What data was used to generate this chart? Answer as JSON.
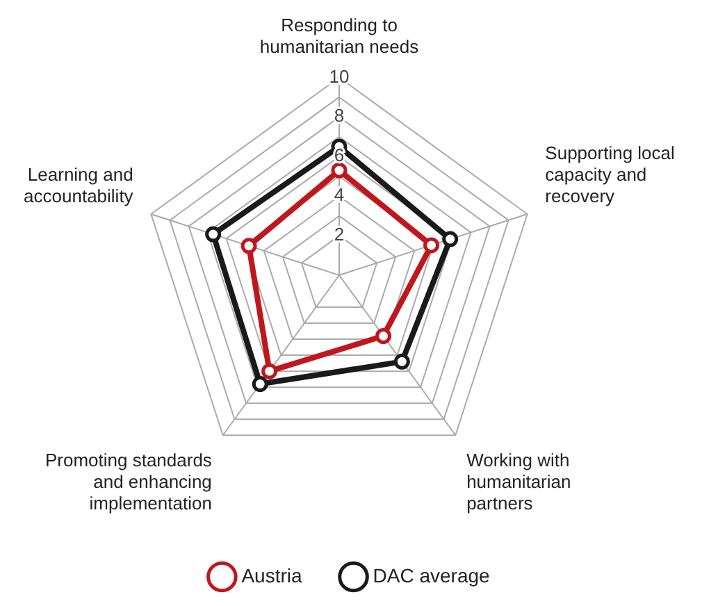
{
  "chart_data": {
    "type": "radar",
    "categories": [
      "Responding to humanitarian needs",
      "Supporting local capacity and recovery",
      "Working with humanitarian partners",
      "Promoting standards and enhancing implementation",
      "Learning and accountability"
    ],
    "series": [
      {
        "name": "Austria",
        "color": "#c0171d",
        "values": [
          5.3,
          4.9,
          3.8,
          6.0,
          4.8
        ]
      },
      {
        "name": "DAC average",
        "color": "#1a1a1a",
        "values": [
          6.5,
          5.9,
          5.4,
          6.8,
          6.7
        ]
      }
    ],
    "ylim": [
      0,
      10
    ],
    "yticks": [
      2,
      4,
      6,
      8,
      10
    ],
    "marker": "circle",
    "grid": true,
    "legend": "bottom"
  }
}
